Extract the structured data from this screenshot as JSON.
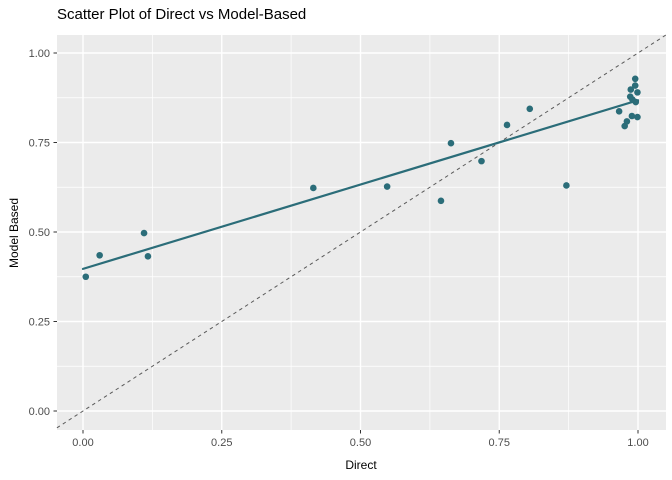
{
  "figure": {
    "background": "#FFFFFF"
  },
  "chart_data": {
    "type": "scatter",
    "title": "Scatter Plot of Direct vs Model-Based",
    "xlabel": "Direct",
    "ylabel": "Model Based",
    "xlim": [
      -0.047,
      1.05
    ],
    "ylim": [
      -0.053,
      1.05
    ],
    "grid": true,
    "legend": "none",
    "panel_bg": "#EBEBEB",
    "grid_color": "#FFFFFF",
    "tick_color": "#333333",
    "tick_label_color": "#4D4D4D",
    "point_color": "#2B6D79",
    "trend_color": "#2B6D79",
    "identity_color": "#5A5A5A",
    "x_ticks": [
      0.0,
      0.25,
      0.5,
      0.75,
      1.0
    ],
    "x_tick_labels": [
      "0.00",
      "0.25",
      "0.50",
      "0.75",
      "1.00"
    ],
    "y_ticks": [
      0.0,
      0.25,
      0.5,
      0.75,
      1.0
    ],
    "y_tick_labels": [
      "0.00",
      "0.25",
      "0.50",
      "0.75",
      "1.00"
    ],
    "minor_ticks": [
      0.125,
      0.375,
      0.625,
      0.875
    ],
    "points": [
      [
        0.005,
        0.375
      ],
      [
        0.03,
        0.435
      ],
      [
        0.11,
        0.497
      ],
      [
        0.117,
        0.432
      ],
      [
        0.415,
        0.623
      ],
      [
        0.548,
        0.627
      ],
      [
        0.645,
        0.587
      ],
      [
        0.663,
        0.748
      ],
      [
        0.718,
        0.698
      ],
      [
        0.764,
        0.799
      ],
      [
        0.805,
        0.844
      ],
      [
        0.871,
        0.63
      ],
      [
        0.966,
        0.837
      ],
      [
        0.976,
        0.796
      ],
      [
        0.98,
        0.809
      ],
      [
        0.989,
        0.824
      ],
      [
        0.999,
        0.821
      ],
      [
        0.996,
        0.863
      ],
      [
        0.99,
        0.87
      ],
      [
        0.986,
        0.878
      ],
      [
        0.999,
        0.89
      ],
      [
        0.987,
        0.898
      ],
      [
        0.995,
        0.909
      ],
      [
        0.995,
        0.928
      ]
    ],
    "trend_line": {
      "x1": 0.0,
      "y1": 0.397,
      "x2": 1.0,
      "y2": 0.868
    },
    "identity_line": {
      "x1": -0.047,
      "y1": -0.047,
      "x2": 1.05,
      "y2": 1.05,
      "style": "dashed"
    }
  }
}
